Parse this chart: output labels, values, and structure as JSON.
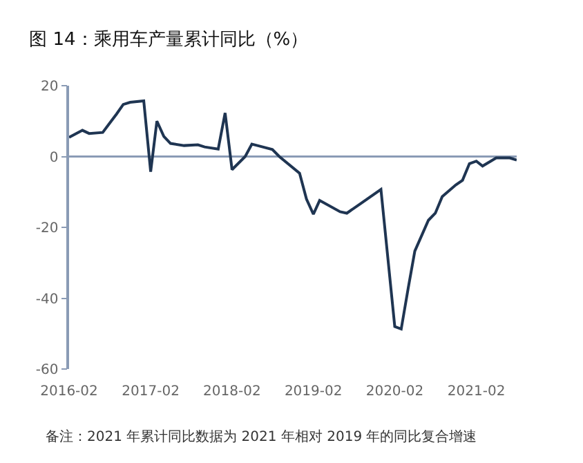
{
  "chart_data": {
    "type": "line",
    "title": "图 14：乘用车产量累计同比（%）",
    "x": [
      "2016-02",
      "2016-04",
      "2016-05",
      "2016-07",
      "2016-08",
      "2016-09",
      "2016-10",
      "2016-11",
      "2017-01",
      "2017-02",
      "2017-03",
      "2017-04",
      "2017-05",
      "2017-07",
      "2017-09",
      "2017-10",
      "2017-12",
      "2018-01",
      "2018-02",
      "2018-04",
      "2018-05",
      "2018-06",
      "2018-08",
      "2018-09",
      "2018-12",
      "2019-01",
      "2019-02",
      "2019-03",
      "2019-06",
      "2019-07",
      "2019-09",
      "2019-12",
      "2020-02",
      "2020-03",
      "2020-04",
      "2020-05",
      "2020-07",
      "2020-08",
      "2020-09",
      "2020-11",
      "2020-12",
      "2021-01",
      "2021-02",
      "2021-03",
      "2021-05",
      "2021-07",
      "2021-08"
    ],
    "series": [
      {
        "color": "#1f3552",
        "values": [
          5.4,
          7.4,
          6.5,
          6.8,
          9.4,
          12,
          14.7,
          15.3,
          15.7,
          -4.3,
          10,
          5.7,
          3.7,
          3.1,
          3.3,
          2.7,
          2.1,
          12.3,
          -3.7,
          0,
          3.5,
          3,
          2,
          0,
          -4.7,
          -12,
          -16.3,
          -12.4,
          -15.6,
          -16,
          -13.3,
          -9.3,
          -48,
          -48.7,
          -37.3,
          -26.7,
          -18,
          -16,
          -11.3,
          -8,
          -6.7,
          -2,
          -1.3,
          -2.7,
          -0.4,
          -0.4,
          -1
        ]
      }
    ],
    "xlim": [
      "2016-02",
      "2021-08"
    ],
    "xticks": [
      "2016-02",
      "2017-02",
      "2018-02",
      "2019-02",
      "2020-02",
      "2021-02"
    ],
    "ylim": [
      -60,
      20
    ],
    "yticks": [
      -60,
      -40,
      -20,
      0,
      20
    ],
    "ref_lines": [
      {
        "axis": "y",
        "value": 0,
        "color": "#8a9bb5"
      }
    ],
    "grid": false,
    "marker": "none",
    "line_style": "solid",
    "annotations": [
      "备注：2021 年累计同比数据为 2021 年相对 2019 年的同比复合增速"
    ]
  }
}
